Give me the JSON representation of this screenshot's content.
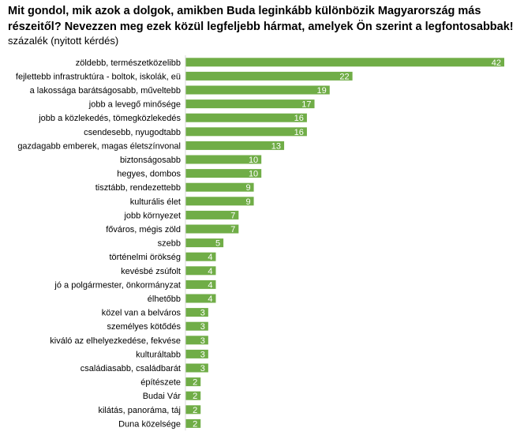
{
  "chart_data": {
    "type": "bar",
    "orientation": "horizontal",
    "title": "Mit gondol, mik azok a dolgok, amikben Buda leginkább különbözik Magyarország más részeitől? Nevezzen meg ezek közül legfeljebb hármat, amelyek Ön szerint a legfontosabbak!",
    "subtitle": "százalék (nyitott kérdés)",
    "bar_color": "#70ad47",
    "categories": [
      "zöldebb, természetközelibb",
      "fejlettebb infrastruktúra - boltok, iskolák, eü",
      "a lakossága barátságosabb, műveltebb",
      "jobb a levegő minősége",
      "jobb a közlekedés, tömegközlekedés",
      "csendesebb, nyugodtabb",
      "gazdagabb emberek, magas életszínvonal",
      "biztonságosabb",
      "hegyes, dombos",
      "tisztább, rendezettebb",
      "kulturális élet",
      "jobb környezet",
      "főváros, mégis zöld",
      "szebb",
      "történelmi örökség",
      "kevésbé zsúfolt",
      "jó a polgármester, önkormányzat",
      "élhetőbb",
      "közel van a belváros",
      "személyes kötődés",
      "kiváló az elhelyezkedése, fekvése",
      "kulturáltabb",
      "családiasabb, családbarát",
      "építészete",
      "Budai Vár",
      "kilátás, panoráma, táj",
      "Duna közelsége"
    ],
    "values": [
      42,
      22,
      19,
      17,
      16,
      16,
      13,
      10,
      10,
      9,
      9,
      7,
      7,
      5,
      4,
      4,
      4,
      4,
      3,
      3,
      3,
      3,
      3,
      2,
      2,
      2,
      2
    ],
    "xlim": [
      0,
      42
    ],
    "grid": false,
    "legend": "none"
  }
}
